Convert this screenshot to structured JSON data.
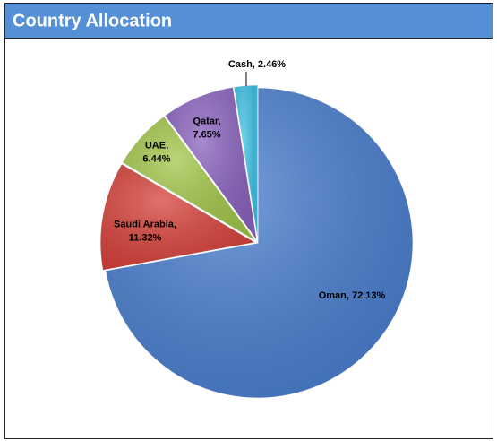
{
  "chart_data": {
    "type": "pie",
    "title": "Country Allocation",
    "values": [
      72.13,
      11.32,
      6.44,
      7.65,
      2.46
    ],
    "value_labels": [
      [
        "Oman, 72.13%"
      ],
      [
        "Saudi Arabia,",
        "11.32%"
      ],
      [
        "UAE,",
        "6.44%"
      ],
      [
        "Qatar,",
        "7.65%"
      ],
      [
        "Cash, 2.46%"
      ]
    ],
    "colors": [
      "#4a7fd0",
      "#d8423b",
      "#a3c74a",
      "#8a63bf",
      "#3fc3e6"
    ]
  }
}
